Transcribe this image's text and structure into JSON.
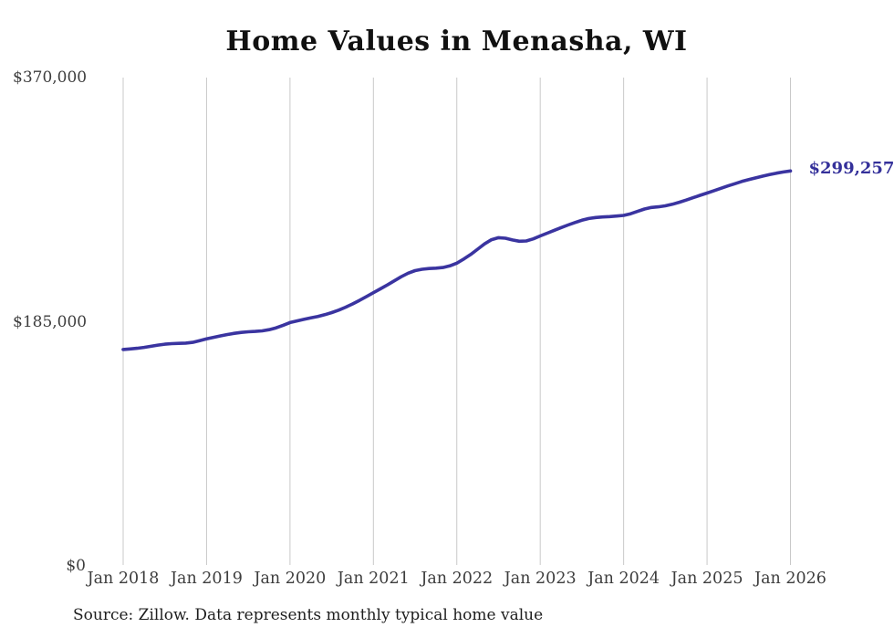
{
  "title": "Home Values in Menasha, WI",
  "source_note": "Source: Zillow. Data represents monthly typical home value",
  "colors": {
    "line": "#3a34a0",
    "end_label": "#34309a",
    "grid": "#c9c9c9",
    "axis_text": "#3d3d3d",
    "title_text": "#111111",
    "source_text": "#1e1e1e",
    "background": "#ffffff"
  },
  "chart_data": {
    "type": "line",
    "title": "Home Values in Menasha, WI",
    "xlabel": "",
    "ylabel": "",
    "x_start": "2018-01",
    "x_end": "2026-01",
    "x_interval": "monthly",
    "x_tick_labels": [
      "Jan 2018",
      "Jan 2019",
      "Jan 2020",
      "Jan 2021",
      "Jan 2022",
      "Jan 2023",
      "Jan 2024",
      "Jan 2025",
      "Jan 2026"
    ],
    "x_ticks_every_n_points": 12,
    "ylim": [
      0,
      370000
    ],
    "y_ticks": [
      {
        "label": "$370,000",
        "value": 370000
      },
      {
        "label": "$185,000",
        "value": 185000
      },
      {
        "label": "$0",
        "value": 0
      }
    ],
    "grid": "vertical-only",
    "legend": "none",
    "latest_value": 299257,
    "latest_value_label": "$299,257",
    "series": [
      {
        "name": "Typical home value",
        "values": [
          164000,
          164400,
          164900,
          165600,
          166400,
          167300,
          168000,
          168400,
          168600,
          168800,
          169400,
          170700,
          172000,
          173200,
          174300,
          175300,
          176200,
          176900,
          177400,
          177700,
          178100,
          179000,
          180400,
          182300,
          184400,
          185600,
          186800,
          187900,
          189000,
          190300,
          191900,
          193800,
          196000,
          198500,
          201200,
          204100,
          207000,
          209900,
          212900,
          216000,
          219100,
          221800,
          223700,
          224800,
          225300,
          225600,
          226100,
          227300,
          229400,
          232500,
          236000,
          240000,
          244000,
          247200,
          248700,
          248300,
          247000,
          246000,
          246200,
          247800,
          250000,
          252100,
          254200,
          256300,
          258300,
          260200,
          261900,
          263200,
          264000,
          264400,
          264700,
          265100,
          265600,
          266800,
          268600,
          270400,
          271600,
          272100,
          272800,
          274000,
          275500,
          277200,
          279000,
          280800,
          282500,
          284300,
          286100,
          287900,
          289600,
          291300,
          292700,
          294000,
          295300,
          296500,
          297600,
          298500,
          299257
        ]
      }
    ]
  }
}
